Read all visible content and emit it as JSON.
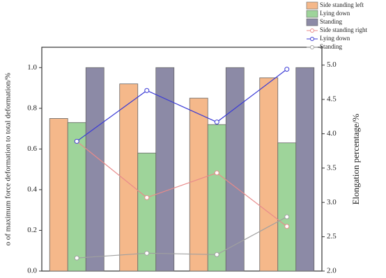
{
  "chart_data": {
    "type": "bar_line",
    "y_label": "o of maximum force deformation to total deformation/%",
    "y2_label": "Elongation percentage/%",
    "categories": [
      null,
      null,
      null,
      null
    ],
    "ylim": [
      0,
      1.1
    ],
    "yticks": [
      {
        "value": 0,
        "label": "0.0"
      },
      0.2,
      0.4,
      0.6,
      0.8,
      {
        "value": 1,
        "label": "1.0"
      }
    ],
    "y2lim": [
      2,
      5.26
    ],
    "y2ticks": [
      {
        "value": 2,
        "label": "2.0"
      },
      2.5,
      {
        "value": 3,
        "label": "3.0"
      },
      3.5,
      {
        "value": 4,
        "label": "4.0"
      },
      4.5,
      {
        "value": 5,
        "label": "5.0"
      }
    ],
    "series": [
      {
        "name": "Side standing left",
        "type": "bar",
        "color": "#f5b88a",
        "values": [
          0.75,
          0.92,
          0.85,
          0.95
        ]
      },
      {
        "name": "Lying down",
        "type": "bar",
        "color": "#9ed49a",
        "values": [
          0.73,
          0.58,
          0.72,
          0.63
        ]
      },
      {
        "name": "Standing",
        "type": "bar",
        "color": "#8c8aa6",
        "values": [
          1.0,
          1.0,
          1.0,
          1.0
        ]
      },
      {
        "name": "Side standing right",
        "type": "line",
        "axis": "y2",
        "color": "#e88a8a",
        "values": [
          3.89,
          3.07,
          3.43,
          2.65
        ]
      },
      {
        "name": "Lying down",
        "type": "line",
        "axis": "y2",
        "color": "#3b3bd6",
        "values": [
          3.89,
          4.63,
          4.17,
          4.94
        ]
      },
      {
        "name": "Standing",
        "type": "line",
        "axis": "y2",
        "color": "#a0a0a0",
        "values": [
          2.19,
          2.26,
          2.24,
          2.79
        ]
      }
    ]
  }
}
